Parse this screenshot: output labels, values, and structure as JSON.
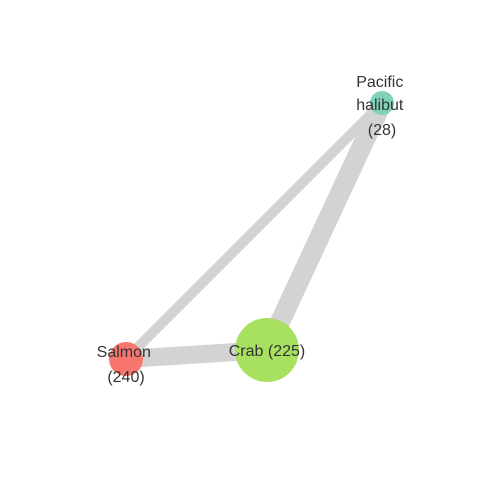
{
  "graph": {
    "nodes": [
      {
        "id": "salmon",
        "label_lines": [
          "Salmon",
          "(240)"
        ],
        "color": "#f8766d"
      },
      {
        "id": "crab",
        "label_lines": [
          "Crab (225)"
        ],
        "color": "#a8e05f"
      },
      {
        "id": "halibut",
        "label_lines": [
          "Pacific",
          "halibut",
          "(28)"
        ],
        "color": "#7fd1b9"
      }
    ],
    "edges": [
      {
        "source": "salmon",
        "target": "crab"
      },
      {
        "source": "salmon",
        "target": "halibut"
      },
      {
        "source": "crab",
        "target": "halibut"
      }
    ],
    "edge_color": "#d3d3d3"
  }
}
